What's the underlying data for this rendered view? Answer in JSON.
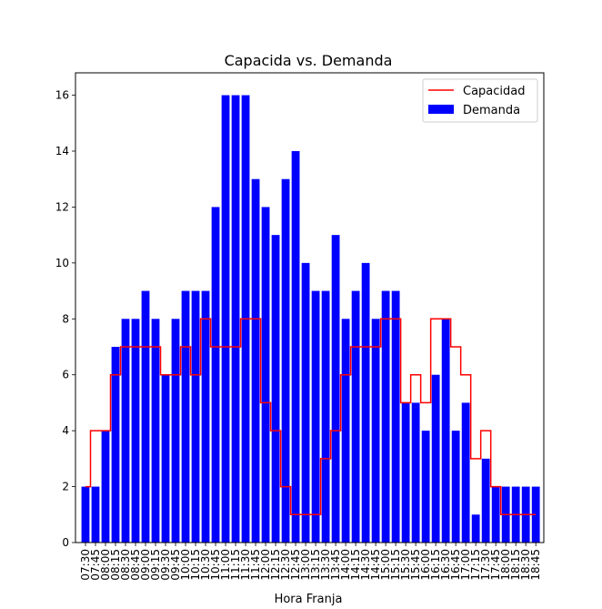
{
  "chart_data": {
    "type": "bar",
    "title": "Capacida vs. Demanda",
    "xlabel": "Hora Franja",
    "ylabel": "",
    "ylim": [
      0,
      16.8
    ],
    "yticks": [
      0,
      2,
      4,
      6,
      8,
      10,
      12,
      14,
      16
    ],
    "grid": false,
    "legend_position": "top-right",
    "categories": [
      "07:30",
      "07:45",
      "08:00",
      "08:15",
      "08:30",
      "08:45",
      "09:00",
      "09:15",
      "09:30",
      "09:45",
      "10:00",
      "10:15",
      "10:30",
      "10:45",
      "11:00",
      "11:15",
      "11:30",
      "11:45",
      "12:00",
      "12:15",
      "12:30",
      "12:45",
      "13:00",
      "13:15",
      "13:30",
      "13:45",
      "14:00",
      "14:15",
      "14:30",
      "14:45",
      "15:00",
      "15:15",
      "15:30",
      "15:45",
      "16:00",
      "16:15",
      "16:30",
      "16:45",
      "17:00",
      "17:15",
      "17:30",
      "17:45",
      "18:00",
      "18:15",
      "18:30",
      "18:45"
    ],
    "series": [
      {
        "name": "Demanda",
        "kind": "bar",
        "color": "#0000ff",
        "values": [
          2,
          2,
          4,
          7,
          8,
          8,
          9,
          8,
          6,
          8,
          9,
          9,
          9,
          12,
          16,
          16,
          16,
          13,
          12,
          11,
          13,
          14,
          10,
          9,
          9,
          11,
          8,
          9,
          10,
          8,
          9,
          9,
          5,
          5,
          4,
          6,
          8,
          4,
          5,
          1,
          3,
          2,
          2,
          2,
          2,
          2
        ]
      },
      {
        "name": "Capacidad",
        "kind": "step",
        "color": "#ff0000",
        "values": [
          2,
          4,
          4,
          6,
          7,
          7,
          7,
          7,
          6,
          6,
          7,
          6,
          8,
          7,
          7,
          7,
          8,
          8,
          5,
          4,
          2,
          1,
          1,
          1,
          3,
          4,
          6,
          7,
          7,
          7,
          8,
          8,
          5,
          6,
          5,
          8,
          8,
          7,
          6,
          3,
          4,
          2,
          1,
          1,
          1,
          1
        ]
      }
    ]
  }
}
